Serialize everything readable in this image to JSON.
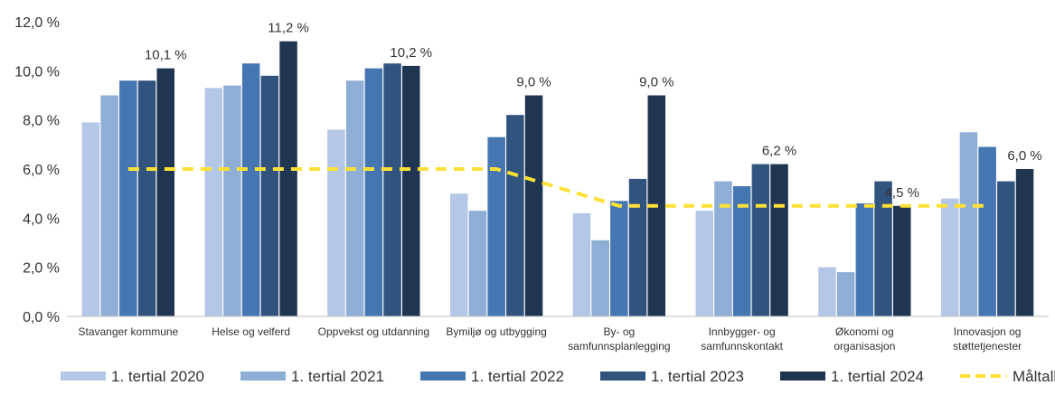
{
  "chart_data": {
    "type": "bar",
    "title": "",
    "xlabel": "",
    "ylabel": "",
    "ylim": [
      0,
      12
    ],
    "yticks": [
      "0,0 %",
      "2,0 %",
      "4,0 %",
      "6,0 %",
      "8,0 %",
      "10,0 %",
      "12,0 %"
    ],
    "grid": false,
    "legend_position": "bottom",
    "categories": [
      [
        "Stavanger kommune"
      ],
      [
        "Helse og velferd"
      ],
      [
        "Oppvekst og utdanning"
      ],
      [
        "Bymiljø og utbygging"
      ],
      [
        "By- og",
        "samfunnsplanlegging"
      ],
      [
        "Innbygger- og",
        "samfunnskontakt"
      ],
      [
        "Økonomi og",
        "organisasjon"
      ],
      [
        "Innovasjon og",
        "støttetjenester"
      ]
    ],
    "series": [
      {
        "name": "1. tertial 2020",
        "color": "#b4c7e7",
        "values": [
          7.9,
          9.3,
          7.6,
          5.0,
          4.2,
          4.3,
          2.0,
          4.8
        ]
      },
      {
        "name": "1. tertial 2021",
        "color": "#8eaed6",
        "values": [
          9.0,
          9.4,
          9.6,
          4.3,
          3.1,
          5.5,
          1.8,
          7.5
        ]
      },
      {
        "name": "1. tertial 2022",
        "color": "#4676b2",
        "values": [
          9.6,
          10.3,
          10.1,
          7.3,
          4.7,
          5.3,
          4.6,
          6.9
        ]
      },
      {
        "name": "1. tertial 2023",
        "color": "#31547f",
        "values": [
          9.6,
          9.8,
          10.3,
          8.2,
          5.6,
          6.2,
          5.5,
          5.5
        ]
      },
      {
        "name": "1. tertial 2024",
        "color": "#1f3552",
        "values": [
          10.1,
          11.2,
          10.2,
          9.0,
          9.0,
          6.2,
          4.5,
          6.0
        ]
      }
    ],
    "data_labels": [
      "10,1 %",
      "11,2 %",
      "10,2 %",
      "9,0 %",
      "9,0 %",
      "6,2 %",
      "4,5 %",
      "6,0 %"
    ],
    "target_line": {
      "name": "Måltall per år",
      "color": "#ffe135",
      "values": [
        6.0,
        6.0,
        6.0,
        6.0,
        4.5,
        4.5,
        4.5,
        4.5
      ]
    }
  }
}
